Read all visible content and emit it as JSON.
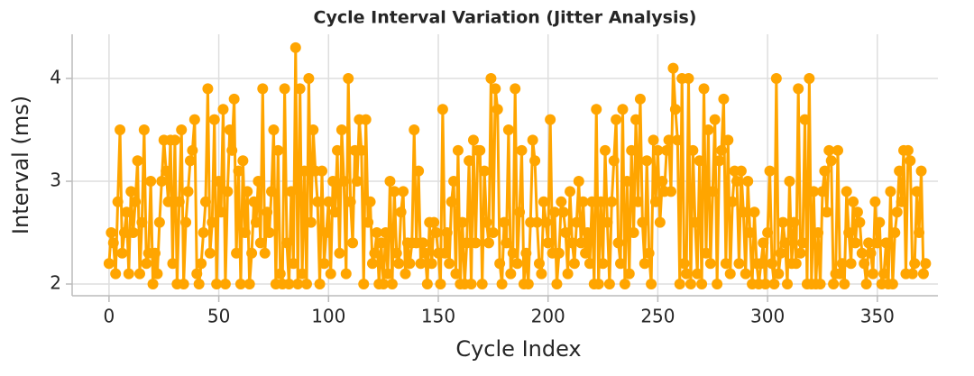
{
  "chart_data": {
    "type": "line",
    "title": "Cycle Interval Variation (Jitter Analysis)",
    "x_label": "Cycle Index",
    "y_label": "Interval (ms)",
    "xlim": [
      -16.8,
      377.6
    ],
    "ylim": [
      1.886,
      4.43
    ],
    "xticks": [
      0,
      50,
      100,
      150,
      200,
      250,
      300,
      350
    ],
    "yticks": [
      2,
      3,
      4
    ],
    "grid": true,
    "x": [
      0,
      1,
      2,
      3,
      4,
      5,
      6,
      7,
      8,
      9,
      10,
      11,
      12,
      13,
      14,
      15,
      16,
      17,
      18,
      19,
      20,
      21,
      22,
      23,
      24,
      25,
      26,
      27,
      28,
      29,
      30,
      31,
      32,
      33,
      34,
      35,
      36,
      37,
      38,
      39,
      40,
      41,
      42,
      43,
      44,
      45,
      46,
      47,
      48,
      49,
      50,
      51,
      52,
      53,
      54,
      55,
      56,
      57,
      58,
      59,
      60,
      61,
      62,
      63,
      64,
      65,
      66,
      67,
      68,
      69,
      70,
      71,
      72,
      73,
      74,
      75,
      76,
      77,
      78,
      79,
      80,
      81,
      82,
      83,
      84,
      85,
      86,
      87,
      88,
      89,
      90,
      91,
      92,
      93,
      94,
      95,
      96,
      97,
      98,
      99,
      100,
      101,
      102,
      103,
      104,
      105,
      106,
      107,
      108,
      109,
      110,
      111,
      112,
      113,
      114,
      115,
      116,
      117,
      118,
      119,
      120,
      121,
      122,
      123,
      124,
      125,
      126,
      127,
      128,
      129,
      130,
      131,
      132,
      133,
      134,
      135,
      136,
      137,
      138,
      139,
      140,
      141,
      142,
      143,
      144,
      145,
      146,
      147,
      148,
      149,
      150,
      151,
      152,
      153,
      154,
      155,
      156,
      157,
      158,
      159,
      160,
      161,
      162,
      163,
      164,
      165,
      166,
      167,
      168,
      169,
      170,
      171,
      172,
      173,
      174,
      175,
      176,
      177,
      178,
      179,
      180,
      181,
      182,
      183,
      184,
      185,
      186,
      187,
      188,
      189,
      190,
      191,
      192,
      193,
      194,
      195,
      196,
      197,
      198,
      199,
      200,
      201,
      202,
      203,
      204,
      205,
      206,
      207,
      208,
      209,
      210,
      211,
      212,
      213,
      214,
      215,
      216,
      217,
      218,
      219,
      220,
      221,
      222,
      223,
      224,
      225,
      226,
      227,
      228,
      229,
      230,
      231,
      232,
      233,
      234,
      235,
      236,
      237,
      238,
      239,
      240,
      241,
      242,
      243,
      244,
      245,
      246,
      247,
      248,
      249,
      250,
      251,
      252,
      253,
      254,
      255,
      256,
      257,
      258,
      259,
      260,
      261,
      262,
      263,
      264,
      265,
      266,
      267,
      268,
      269,
      270,
      271,
      272,
      273,
      274,
      275,
      276,
      277,
      278,
      279,
      280,
      281,
      282,
      283,
      284,
      285,
      286,
      287,
      288,
      289,
      290,
      291,
      292,
      293,
      294,
      295,
      296,
      297,
      298,
      299,
      300,
      301,
      302,
      303,
      304,
      305,
      306,
      307,
      308,
      309,
      310,
      311,
      312,
      313,
      314,
      315,
      316,
      317,
      318,
      319,
      320,
      321,
      322,
      323,
      324,
      325,
      326,
      327,
      328,
      329,
      330,
      331,
      332,
      333,
      334,
      335,
      336,
      337,
      338,
      339,
      340,
      341,
      342,
      343,
      344,
      345,
      346,
      347,
      348,
      349,
      350,
      351,
      352,
      353,
      354,
      355,
      356,
      357,
      358,
      359,
      360,
      361,
      362,
      363,
      364,
      365,
      366,
      367,
      368,
      369,
      370,
      371,
      372
    ],
    "series": [
      {
        "name": "Interval",
        "color": "#ffa500",
        "values": [
          2.2,
          2.5,
          2.4,
          2.1,
          2.8,
          3.5,
          2.3,
          2.5,
          2.7,
          2.1,
          2.9,
          2.5,
          2.8,
          3.2,
          2.1,
          2.6,
          3.5,
          2.2,
          2.3,
          3.0,
          2.0,
          2.3,
          2.1,
          2.6,
          3.0,
          3.4,
          3.1,
          2.8,
          3.4,
          2.2,
          3.4,
          2.0,
          2.8,
          3.5,
          2.0,
          2.6,
          2.9,
          3.2,
          3.3,
          3.6,
          2.1,
          2.0,
          2.2,
          2.5,
          2.8,
          3.9,
          2.3,
          2.6,
          3.6,
          2.0,
          3.0,
          2.7,
          3.7,
          2.0,
          2.9,
          3.5,
          3.3,
          3.8,
          2.3,
          3.1,
          2.0,
          3.2,
          2.5,
          2.9,
          2.0,
          2.3,
          2.8,
          2.6,
          3.0,
          2.4,
          3.9,
          2.3,
          2.7,
          2.5,
          2.9,
          3.5,
          2.0,
          3.3,
          2.1,
          2.0,
          3.9,
          2.4,
          2.0,
          2.9,
          2.2,
          4.3,
          2.0,
          3.9,
          2.1,
          3.1,
          2.0,
          4.0,
          2.6,
          3.5,
          3.1,
          2.8,
          2.0,
          3.1,
          2.2,
          2.5,
          2.8,
          2.1,
          3.0,
          2.7,
          3.3,
          2.3,
          3.5,
          3.0,
          2.1,
          4.0,
          2.8,
          2.4,
          3.3,
          3.0,
          3.6,
          3.3,
          2.0,
          3.6,
          2.6,
          2.8,
          2.2,
          2.3,
          2.5,
          2.0,
          2.4,
          2.0,
          2.5,
          2.1,
          3.0,
          2.0,
          2.9,
          2.3,
          2.2,
          2.7,
          2.9,
          2.1,
          2.4,
          2.2,
          2.4,
          3.5,
          2.4,
          3.1,
          2.2,
          2.4,
          2.3,
          2.0,
          2.6,
          2.2,
          2.6,
          2.5,
          2.3,
          2.0,
          3.7,
          2.3,
          2.5,
          2.2,
          2.8,
          3.0,
          2.1,
          3.3,
          2.0,
          2.6,
          2.0,
          2.4,
          3.2,
          2.0,
          3.4,
          2.4,
          3.3,
          3.3,
          2.0,
          3.1,
          2.6,
          2.4,
          4.0,
          2.5,
          3.9,
          3.7,
          2.2,
          2.0,
          2.6,
          2.4,
          3.5,
          2.1,
          2.3,
          3.9,
          2.2,
          2.7,
          3.3,
          2.0,
          2.3,
          2.0,
          2.6,
          3.4,
          3.2,
          2.6,
          2.2,
          2.1,
          2.8,
          2.6,
          2.4,
          3.6,
          2.3,
          2.7,
          2.0,
          2.3,
          2.8,
          2.7,
          2.5,
          2.1,
          2.9,
          2.4,
          2.2,
          2.6,
          3.0,
          2.4,
          2.8,
          2.3,
          2.5,
          2.2,
          2.8,
          2.0,
          3.7,
          2.0,
          2.8,
          2.2,
          3.3,
          2.6,
          2.0,
          2.8,
          3.2,
          3.6,
          2.4,
          2.2,
          3.7,
          2.0,
          3.0,
          2.1,
          3.3,
          2.5,
          3.6,
          2.8,
          3.8,
          2.6,
          2.2,
          3.2,
          2.3,
          2.0,
          3.4,
          2.8,
          3.3,
          2.6,
          3.0,
          2.9,
          3.3,
          3.4,
          2.9,
          4.1,
          3.7,
          3.4,
          2.0,
          4.0,
          2.2,
          2.1,
          4.0,
          2.0,
          3.3,
          2.6,
          2.1,
          3.2,
          2.0,
          3.9,
          2.3,
          3.5,
          2.2,
          2.9,
          3.6,
          2.0,
          3.2,
          3.3,
          3.8,
          2.2,
          3.4,
          2.1,
          2.8,
          3.1,
          3.0,
          2.2,
          3.1,
          2.7,
          2.1,
          3.0,
          2.5,
          2.0,
          2.7,
          2.2,
          2.0,
          2.2,
          2.4,
          2.0,
          2.5,
          3.1,
          2.2,
          2.0,
          4.0,
          2.1,
          2.3,
          2.6,
          2.4,
          2.0,
          3.0,
          2.2,
          2.6,
          2.2,
          3.9,
          2.3,
          2.4,
          3.6,
          2.0,
          4.0,
          2.0,
          2.9,
          2.0,
          2.5,
          2.0,
          2.9,
          3.1,
          2.7,
          3.3,
          3.2,
          2.0,
          2.1,
          3.3,
          2.1,
          2.2,
          2.0,
          2.9,
          2.5,
          2.2,
          2.8,
          2.4,
          2.7,
          2.6,
          2.3,
          2.2,
          2.0,
          2.4,
          2.3,
          2.1,
          2.8,
          2.4,
          2.6,
          2.0,
          2.1,
          2.4,
          2.0,
          2.9,
          2.0,
          2.5,
          2.7,
          3.1,
          2.8,
          3.3,
          2.1,
          3.3,
          3.2,
          2.1,
          2.2,
          2.9,
          2.5,
          3.1,
          2.1,
          2.2
        ]
      }
    ]
  }
}
